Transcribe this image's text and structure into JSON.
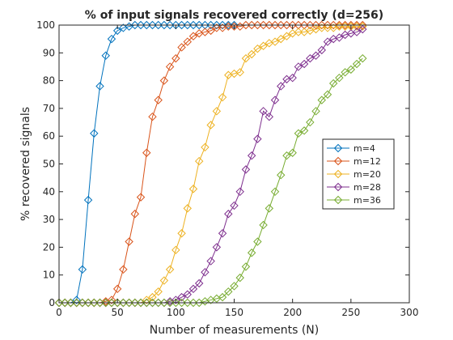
{
  "chart_data": {
    "type": "line",
    "title": "% of input signals recovered correctly (d=256)",
    "xlabel": "Number of measurements (N)",
    "ylabel": "% recovered signals",
    "xlim": [
      0,
      300
    ],
    "ylim": [
      0,
      100
    ],
    "xticks": [
      0,
      50,
      100,
      150,
      200,
      250,
      300
    ],
    "yticks": [
      0,
      10,
      20,
      30,
      40,
      50,
      60,
      70,
      80,
      90,
      100
    ],
    "grid": false,
    "marker": "diamond",
    "legend_position": "center-right",
    "x": [
      0,
      5,
      10,
      15,
      20,
      25,
      30,
      35,
      40,
      45,
      50,
      55,
      60,
      65,
      70,
      75,
      80,
      85,
      90,
      95,
      100,
      105,
      110,
      115,
      120,
      125,
      130,
      135,
      140,
      145,
      150,
      155,
      160,
      165,
      170,
      175,
      180,
      185,
      190,
      195,
      200,
      205,
      210,
      215,
      220,
      225,
      230,
      235,
      240,
      245,
      250,
      255,
      260
    ],
    "series": [
      {
        "name": "m=4",
        "color": "#0072bd",
        "values": [
          0,
          0,
          0,
          1,
          12,
          37,
          61,
          78,
          89,
          95,
          98,
          99,
          99.5,
          100,
          100,
          100,
          100,
          100,
          100,
          100,
          100,
          100,
          100,
          100,
          100,
          100,
          100,
          100,
          100,
          100,
          100,
          null,
          null,
          null,
          null,
          null,
          null,
          null,
          null,
          null,
          null,
          null,
          null,
          null,
          null,
          null,
          null,
          null,
          null,
          null,
          null,
          null,
          null
        ]
      },
      {
        "name": "m=12",
        "color": "#d95319",
        "values": [
          0,
          0,
          0,
          0,
          0,
          0,
          0,
          0,
          0.5,
          1,
          5,
          12,
          22,
          32,
          38,
          54,
          67,
          73,
          80,
          85,
          88,
          92,
          94,
          96,
          97,
          97.5,
          98,
          99,
          99,
          99.5,
          99.5,
          99.5,
          100,
          100,
          100,
          100,
          100,
          100,
          100,
          100,
          100,
          100,
          100,
          100,
          100,
          100,
          100,
          100,
          100,
          100,
          100,
          100,
          100
        ]
      },
      {
        "name": "m=20",
        "color": "#edb120",
        "values": [
          0,
          0,
          0,
          0,
          0,
          0,
          0,
          0,
          0,
          0,
          0,
          0,
          0,
          0,
          0,
          1,
          2,
          4,
          8,
          12,
          19,
          25,
          34,
          41,
          51,
          56,
          64,
          69,
          74,
          82,
          82.5,
          83,
          88,
          89.5,
          91.5,
          92.5,
          93.5,
          94,
          95,
          96,
          97,
          97.5,
          97.5,
          98,
          98.5,
          99,
          99,
          99,
          99.5,
          99.5,
          99.5,
          99.5,
          99.5
        ]
      },
      {
        "name": "m=28",
        "color": "#7e2f8e",
        "values": [
          0,
          0,
          0,
          0,
          0,
          0,
          0,
          0,
          0,
          0,
          0,
          0,
          0,
          0,
          0,
          0,
          0,
          0,
          0,
          0.5,
          1,
          2,
          3,
          5,
          7,
          11,
          15,
          20,
          25,
          32,
          35,
          40,
          48,
          53,
          59,
          69,
          67,
          73,
          78,
          80.5,
          81,
          85,
          86,
          88,
          89,
          91,
          94,
          95,
          95.5,
          96.5,
          97,
          97.5,
          98.5
        ]
      },
      {
        "name": "m=36",
        "color": "#77ac30",
        "values": [
          0,
          0,
          0,
          0,
          0,
          0,
          0,
          0,
          0,
          0,
          0,
          0,
          0,
          0,
          0,
          0,
          0,
          0,
          0,
          0,
          0,
          0,
          0,
          0,
          0,
          0.5,
          1,
          1.5,
          2,
          4,
          6,
          9,
          13,
          18,
          22,
          28,
          34,
          40,
          46,
          53,
          54,
          61,
          62,
          65,
          69,
          73,
          75,
          79,
          81,
          83,
          84,
          86,
          88
        ]
      }
    ]
  }
}
